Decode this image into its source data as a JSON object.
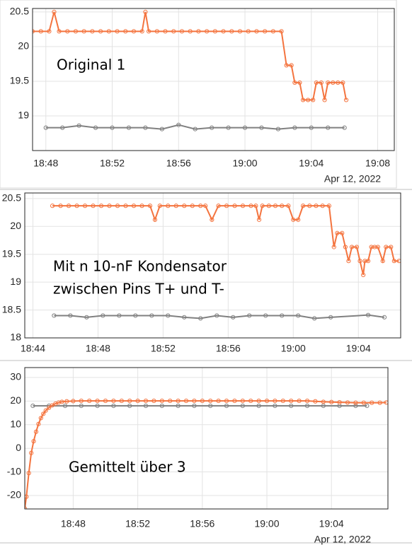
{
  "chart_data": [
    {
      "type": "line",
      "annotations": [
        "Original 1"
      ],
      "date_label": "Apr 12, 2022",
      "xlim": [
        1127.2,
        1149.0
      ],
      "ylim": [
        18.5,
        20.55
      ],
      "grid": true,
      "xticks": [
        {
          "value": 1128,
          "label": "18:48"
        },
        {
          "value": 1132,
          "label": "18:52"
        },
        {
          "value": 1136,
          "label": "18:56"
        },
        {
          "value": 1140,
          "label": "19:00"
        },
        {
          "value": 1144,
          "label": "19:04"
        },
        {
          "value": 1148,
          "label": "19:08"
        }
      ],
      "yticks": [
        19,
        19.5,
        20,
        20.5
      ],
      "series": [
        {
          "color": "#f4743f",
          "x": [
            1127.2,
            1127.7,
            1128.2,
            1128.5,
            1128.8,
            1129.3,
            1129.8,
            1130.3,
            1130.8,
            1131.3,
            1131.8,
            1132.3,
            1132.8,
            1133.3,
            1133.8,
            1134.0,
            1134.2,
            1134.7,
            1135.2,
            1135.7,
            1136.2,
            1136.7,
            1137.2,
            1137.7,
            1138.2,
            1138.7,
            1139.2,
            1139.7,
            1140.2,
            1140.7,
            1141.2,
            1141.7,
            1142.2,
            1142.5,
            1142.8,
            1143.0,
            1143.3,
            1143.5,
            1143.8,
            1144.1,
            1144.3,
            1144.6,
            1144.8,
            1145.0,
            1145.3,
            1145.6,
            1145.9,
            1146.1
          ],
          "values": [
            20.22,
            20.22,
            20.22,
            20.5,
            20.22,
            20.22,
            20.22,
            20.22,
            20.22,
            20.22,
            20.22,
            20.22,
            20.22,
            20.22,
            20.22,
            20.5,
            20.22,
            20.22,
            20.22,
            20.22,
            20.22,
            20.22,
            20.22,
            20.22,
            20.22,
            20.22,
            20.22,
            20.22,
            20.22,
            20.22,
            20.22,
            20.22,
            20.22,
            19.73,
            19.73,
            19.48,
            19.48,
            19.23,
            19.23,
            19.23,
            19.48,
            19.48,
            19.23,
            19.48,
            19.48,
            19.48,
            19.48,
            19.23
          ]
        },
        {
          "color": "#808080",
          "x": [
            1128,
            1129,
            1130,
            1131,
            1132,
            1133,
            1134,
            1135,
            1136,
            1137,
            1138,
            1139,
            1140,
            1141,
            1142,
            1143,
            1144,
            1145,
            1146
          ],
          "values": [
            18.83,
            18.83,
            18.86,
            18.83,
            18.83,
            18.83,
            18.83,
            18.81,
            18.87,
            18.81,
            18.83,
            18.83,
            18.83,
            18.83,
            18.81,
            18.83,
            18.83,
            18.83,
            18.83
          ]
        }
      ]
    },
    {
      "type": "line",
      "annotations": [
        "Mit n 10-nF Kondensator",
        "zwischen Pins T+ und T-"
      ],
      "xlim": [
        1123.5,
        1146.6
      ],
      "ylim": [
        18,
        20.6
      ],
      "grid": true,
      "xticks": [
        {
          "value": 1124,
          "label": "18:44"
        },
        {
          "value": 1128,
          "label": "18:48"
        },
        {
          "value": 1132,
          "label": "18:52"
        },
        {
          "value": 1136,
          "label": "18:56"
        },
        {
          "value": 1140,
          "label": "19:00"
        },
        {
          "value": 1144,
          "label": "19:04"
        }
      ],
      "yticks": [
        18,
        18.5,
        19,
        19.5,
        20,
        20.5
      ],
      "series": [
        {
          "color": "#f4743f",
          "x": [
            1125.2,
            1125.7,
            1126.2,
            1126.7,
            1127.2,
            1127.7,
            1128.2,
            1128.7,
            1129.2,
            1129.7,
            1130.2,
            1130.7,
            1131.2,
            1131.5,
            1131.8,
            1132.3,
            1132.8,
            1133.3,
            1133.8,
            1134.3,
            1134.6,
            1135.0,
            1135.4,
            1135.9,
            1136.4,
            1136.9,
            1137.4,
            1137.7,
            1137.9,
            1138.1,
            1138.5,
            1138.9,
            1139.3,
            1139.7,
            1140.0,
            1140.3,
            1140.6,
            1141.0,
            1141.4,
            1141.8,
            1142.2,
            1142.5,
            1142.7,
            1143.0,
            1143.2,
            1143.4,
            1143.6,
            1143.9,
            1144.1,
            1144.3,
            1144.4,
            1144.6,
            1144.8,
            1145.0,
            1145.2,
            1145.5,
            1145.7,
            1146.0,
            1146.2,
            1146.5
          ],
          "values": [
            20.37,
            20.37,
            20.37,
            20.37,
            20.37,
            20.37,
            20.37,
            20.37,
            20.37,
            20.37,
            20.37,
            20.37,
            20.37,
            20.12,
            20.37,
            20.37,
            20.37,
            20.37,
            20.37,
            20.37,
            20.37,
            20.12,
            20.37,
            20.37,
            20.37,
            20.37,
            20.37,
            20.37,
            20.12,
            20.37,
            20.37,
            20.37,
            20.37,
            20.37,
            20.12,
            20.12,
            20.37,
            20.37,
            20.37,
            20.37,
            20.37,
            19.63,
            19.88,
            19.88,
            19.63,
            19.38,
            19.63,
            19.63,
            19.38,
            19.13,
            19.38,
            19.38,
            19.63,
            19.63,
            19.63,
            19.38,
            19.63,
            19.63,
            19.38,
            19.38
          ]
        },
        {
          "color": "#808080",
          "x": [
            1125.3,
            1126.3,
            1127.3,
            1128.3,
            1129.3,
            1130.3,
            1131.3,
            1132.3,
            1133.3,
            1134.3,
            1135.3,
            1136.3,
            1137.3,
            1138.3,
            1139.3,
            1140.3,
            1141.3,
            1142.3,
            1144.6,
            1145.6
          ],
          "values": [
            18.4,
            18.4,
            18.37,
            18.4,
            18.4,
            18.4,
            18.4,
            18.4,
            18.37,
            18.35,
            18.4,
            18.37,
            18.4,
            18.4,
            18.4,
            18.4,
            18.35,
            18.37,
            18.41,
            18.37
          ]
        }
      ]
    },
    {
      "type": "line",
      "annotations": [
        "Gemittelt über 3"
      ],
      "date_label": "Apr 12, 2022",
      "xlim": [
        1125,
        1147.5
      ],
      "ylim": [
        -25.7,
        34.2
      ],
      "grid": true,
      "xticks": [
        {
          "value": 1128,
          "label": "18:48"
        },
        {
          "value": 1132,
          "label": "18:52"
        },
        {
          "value": 1136,
          "label": "18:56"
        },
        {
          "value": 1140,
          "label": "19:00"
        },
        {
          "value": 1144,
          "label": "19:04"
        }
      ],
      "yticks": [
        -20,
        -10,
        0,
        10,
        20,
        30
      ],
      "series": [
        {
          "color": "#808080",
          "x": [
            1125.5,
            1126.5,
            1127.5,
            1128.5,
            1129.5,
            1130.5,
            1131.5,
            1132.5,
            1133.5,
            1134.5,
            1135.5,
            1136.5,
            1137.5,
            1138.5,
            1139.5,
            1140.5,
            1141.5,
            1142.5,
            1143.5,
            1144.5,
            1145.5,
            1146.2
          ],
          "values": [
            18,
            18,
            18,
            18,
            18,
            18,
            18,
            18,
            18,
            18,
            18,
            18,
            18,
            18,
            18,
            18,
            18,
            18,
            18,
            18,
            18,
            18
          ]
        },
        {
          "color": "#f4743f",
          "x": [
            1125.0,
            1125.1,
            1125.25,
            1125.4,
            1125.55,
            1125.7,
            1125.85,
            1126.0,
            1126.15,
            1126.3,
            1126.5,
            1126.7,
            1126.9,
            1127.1,
            1127.3,
            1127.6,
            1128.0,
            1128.5,
            1129.0,
            1129.5,
            1130.0,
            1130.5,
            1131.0,
            1131.5,
            1132.0,
            1132.5,
            1133.0,
            1133.5,
            1134.0,
            1134.5,
            1135.0,
            1135.5,
            1136.0,
            1136.5,
            1137.0,
            1137.5,
            1138.0,
            1138.5,
            1139.0,
            1139.5,
            1140.0,
            1140.5,
            1141.0,
            1141.5,
            1142.0,
            1142.5,
            1143.0,
            1143.5,
            1144.0,
            1144.5,
            1145.0,
            1145.5,
            1146.0,
            1146.5,
            1147.0,
            1147.4
          ],
          "values": [
            -25.5,
            -20.5,
            -10.5,
            -2,
            3,
            7,
            10.3,
            12.8,
            14.6,
            16,
            17.2,
            18.2,
            18.9,
            19.4,
            19.7,
            19.9,
            20,
            20.1,
            20.1,
            20.1,
            20.1,
            20.1,
            20.1,
            20.1,
            20.1,
            20.1,
            20.1,
            20.1,
            20.1,
            20.1,
            20.1,
            20.1,
            20.1,
            20.1,
            20.1,
            20.1,
            20.1,
            20.1,
            20.1,
            20.1,
            20.1,
            20.1,
            20.1,
            20.1,
            20.1,
            20.1,
            19.9,
            19.7,
            19.6,
            19.5,
            19.4,
            19.3,
            19.3,
            19.3,
            19.3,
            19.4
          ]
        }
      ]
    }
  ]
}
